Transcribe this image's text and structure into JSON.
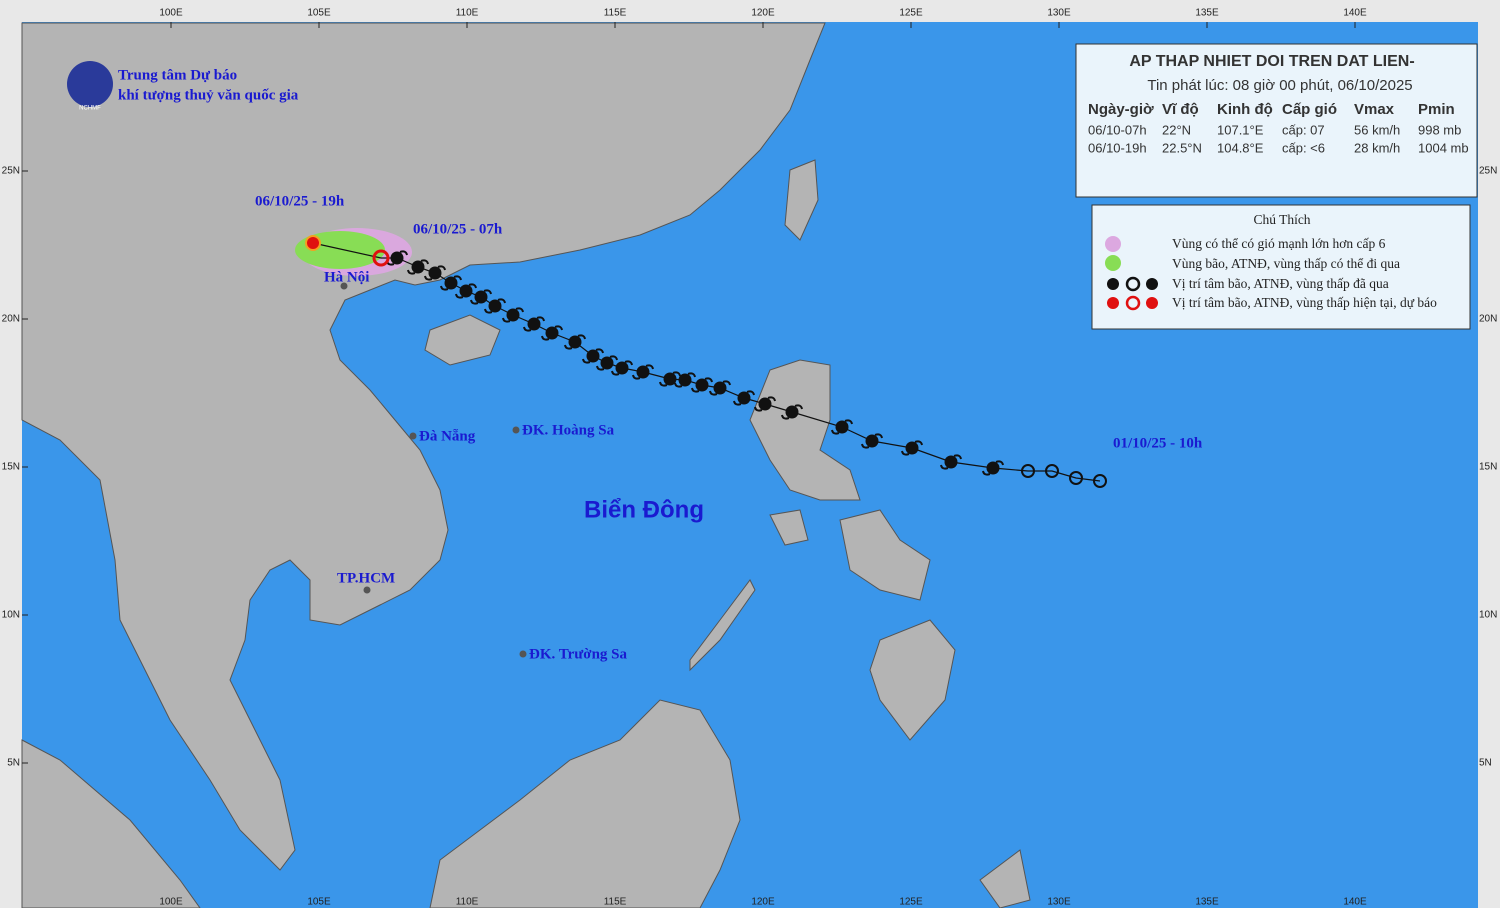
{
  "header": {
    "org_line1": "Trung tâm Dự báo",
    "org_line2": "khí tượng thuỷ văn quốc gia",
    "logo_text": "NCHMF"
  },
  "axes": {
    "lon_labels": [
      "100E",
      "105E",
      "110E",
      "115E",
      "120E",
      "125E",
      "130E",
      "135E",
      "140E"
    ],
    "lat_labels": [
      "25N",
      "20N",
      "15N",
      "10N",
      "5N"
    ]
  },
  "bulletin": {
    "title": "AP THAP NHIET DOI TREN DAT LIEN-",
    "issued": "Tin phát lúc: 08 giờ 00 phút, 06/10/2025",
    "columns": [
      "Ngày-giờ",
      "Vĩ độ",
      "Kinh độ",
      "Cấp gió",
      "Vmax",
      "Pmin"
    ],
    "rows": [
      [
        "06/10-07h",
        "22°N",
        "107.1°E",
        "cấp: 07",
        "56 km/h",
        "998 mb"
      ],
      [
        "06/10-19h",
        "22.5°N",
        "104.8°E",
        "cấp: <6",
        "28 km/h",
        "1004 mb"
      ]
    ]
  },
  "legend": {
    "title": "Chú Thích",
    "items": [
      "Vùng có thể có gió mạnh lớn hơn cấp 6",
      "Vùng bão, ATNĐ, vùng thấp có thể đi qua",
      "Vị trí tâm bão, ATNĐ, vùng thấp đã qua",
      "Vị trí tâm bão, ATNĐ, vùng thấp hiện tại, dự báo"
    ]
  },
  "map_labels": {
    "forecast_time": "06/10/25 - 19h",
    "current_time": "06/10/25 - 07h",
    "start_time": "01/10/25 - 10h",
    "ha_noi": "Hà Nội",
    "da_nang": "Đà Nẵng",
    "hoang_sa": "ĐK. Hoàng Sa",
    "hcm": "TP.HCM",
    "truong_sa": "ĐK. Trường Sa",
    "sea": "Biển Đông"
  }
}
